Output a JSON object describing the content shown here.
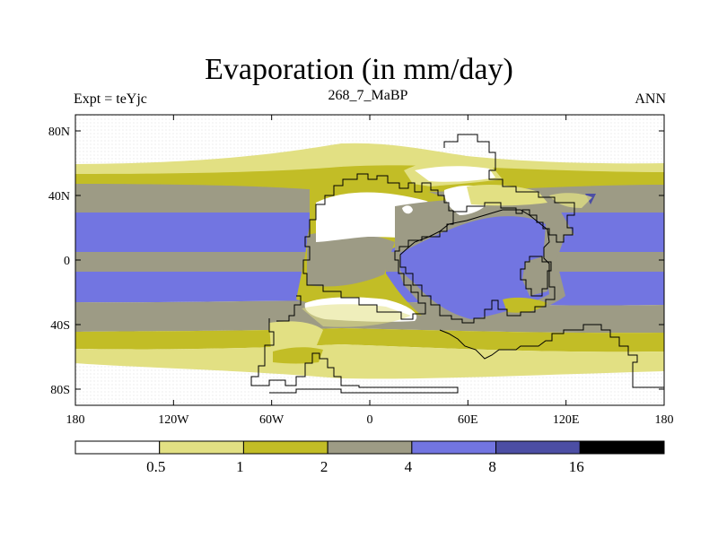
{
  "title": "Evaporation (in mm/day)",
  "subtitle_left": "Expt = teYjc",
  "subtitle_center": "268_7_MaBP",
  "subtitle_right": "ANN",
  "colors": {
    "white": "#ffffff",
    "pale_yellow": "#e2e083",
    "olive": "#c2bd26",
    "gray": "#9d9b85",
    "blue": "#7275e1",
    "dark_blue": "#4c4ea4",
    "black": "#000000",
    "coast": "#000000"
  },
  "map": {
    "projection": "cylindrical-equidistant",
    "lon_range": [
      -180,
      180
    ],
    "lat_range": [
      -90,
      90
    ],
    "y_ticks": [
      {
        "lat": 80,
        "label": "80N"
      },
      {
        "lat": 40,
        "label": "40N"
      },
      {
        "lat": 0,
        "label": "0"
      },
      {
        "lat": -40,
        "label": "40S"
      },
      {
        "lat": -80,
        "label": "80S"
      }
    ],
    "x_ticks": [
      {
        "lon": -180,
        "label": "180"
      },
      {
        "lon": -120,
        "label": "120W"
      },
      {
        "lon": -60,
        "label": "60W"
      },
      {
        "lon": 0,
        "label": "0"
      },
      {
        "lon": 60,
        "label": "60E"
      },
      {
        "lon": 120,
        "label": "120E"
      },
      {
        "lon": 180,
        "label": "180"
      }
    ]
  },
  "colorbar": {
    "boxes": [
      "white",
      "pale_yellow",
      "olive",
      "gray",
      "blue",
      "dark_blue",
      "black"
    ],
    "labels": [
      "0.5",
      "1",
      "2",
      "4",
      "8",
      "16"
    ]
  },
  "chart_data": {
    "type": "heatmap",
    "title": "Evaporation (in mm/day)",
    "units": "mm/day",
    "levels": [
      0.5,
      1,
      2,
      4,
      8,
      16
    ],
    "xlabel": "",
    "ylabel": "",
    "xlim": [
      -180,
      180
    ],
    "ylim": [
      -90,
      90
    ],
    "zonal_bands_ocean": [
      {
        "lat_range": [
          60,
          90
        ],
        "class": "<0.5"
      },
      {
        "lat_range": [
          53,
          60
        ],
        "class": "0.5-1"
      },
      {
        "lat_range": [
          47,
          53
        ],
        "class": "1-2"
      },
      {
        "lat_range": [
          29,
          47
        ],
        "class": "2-4"
      },
      {
        "lat_range": [
          5,
          29
        ],
        "class": "4-8"
      },
      {
        "lat_range": [
          -7,
          5
        ],
        "class": "2-4"
      },
      {
        "lat_range": [
          -29,
          -7
        ],
        "class": "4-8"
      },
      {
        "lat_range": [
          -46,
          -29
        ],
        "class": "2-4"
      },
      {
        "lat_range": [
          -57,
          -46
        ],
        "class": "1-2"
      },
      {
        "lat_range": [
          -66,
          -57
        ],
        "class": "0.5-1"
      },
      {
        "lat_range": [
          -90,
          -66
        ],
        "class": "<0.5"
      }
    ]
  }
}
